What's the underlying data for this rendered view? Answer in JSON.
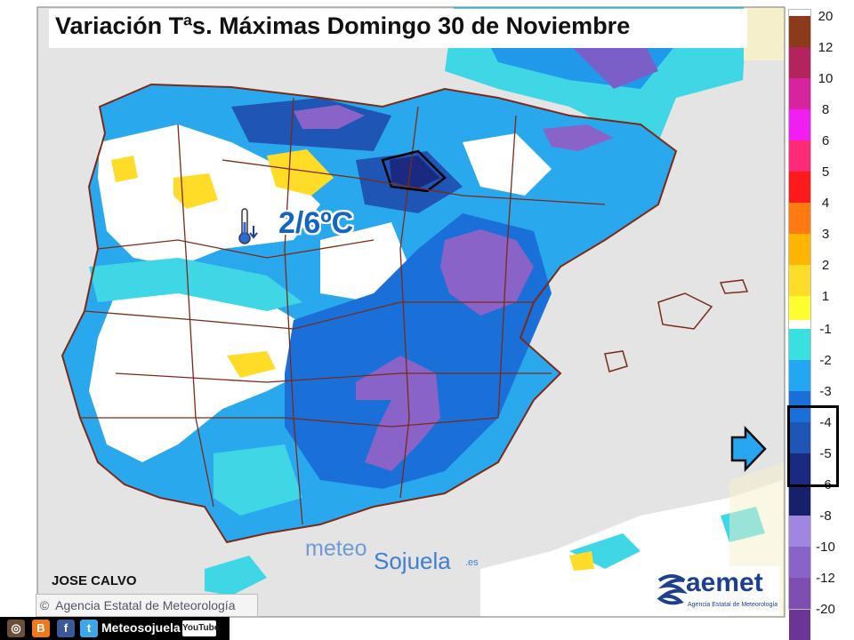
{
  "title": "Variación Tªs. Máximas Domingo 30 de Noviembre",
  "annotation": "2/6ºC",
  "author": "JOSE CALVO",
  "copyright": "Agencia Estatal de Meteorología",
  "social": {
    "name": "Meteosojuela",
    "youtube": "YouTube"
  },
  "brand": {
    "part1": "meteo",
    "part2": "Sojuela",
    "part3": ".es"
  },
  "aemet": {
    "name": "aemet",
    "subtitle": "Agencia Estatal de Meteorología"
  },
  "legend": {
    "positive": [
      {
        "label": "20",
        "color": "#8b3a1a"
      },
      {
        "label": "12",
        "color": "#b3245f"
      },
      {
        "label": "10",
        "color": "#d6249f"
      },
      {
        "label": "8",
        "color": "#f01ef0"
      },
      {
        "label": "6",
        "color": "#ff2a7a"
      },
      {
        "label": "5",
        "color": "#ff1a1a"
      },
      {
        "label": "4",
        "color": "#ff7a10"
      },
      {
        "label": "3",
        "color": "#ffb400"
      },
      {
        "label": "2",
        "color": "#ffdc28"
      },
      {
        "label": "1",
        "color": "#ffff30"
      }
    ],
    "negative": [
      {
        "label": "-1",
        "color": "#38e0e0"
      },
      {
        "label": "-2",
        "color": "#22a7f0"
      },
      {
        "label": "-3",
        "color": "#1b6fd8"
      },
      {
        "label": "-4",
        "color": "#1f55b4"
      },
      {
        "label": "-5",
        "color": "#1a2a80"
      },
      {
        "label": "-6",
        "color": "#17206a"
      },
      {
        "label": "-8",
        "color": "#9f86e0"
      },
      {
        "label": "-10",
        "color": "#8a63c8"
      },
      {
        "label": "-12",
        "color": "#7e4fb0"
      },
      {
        "label": "-20",
        "color": "#6a3594"
      }
    ]
  },
  "colors": {
    "sea": "#e3e3e3",
    "land_border": "#7a2a1a",
    "white_zone": "#ffffff"
  }
}
